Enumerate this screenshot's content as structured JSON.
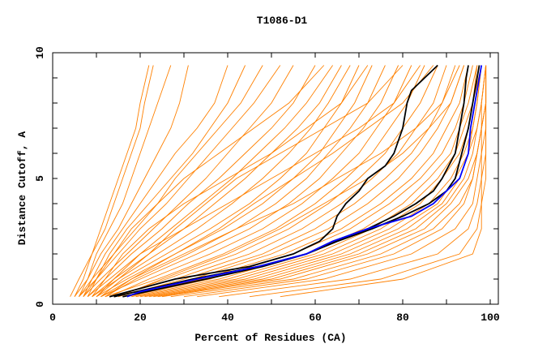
{
  "chart_data": {
    "type": "line",
    "title": "T1086-D1",
    "xlabel": "Percent of Residues (CA)",
    "ylabel": "Distance Cutoff, A",
    "xlim": [
      0,
      102
    ],
    "ylim": [
      0,
      10
    ],
    "x_ticks": [
      0,
      20,
      40,
      60,
      80,
      100
    ],
    "y_ticks": [
      0,
      5,
      10
    ],
    "grid": false,
    "legend": "none",
    "colors": {
      "models": "#ff8000",
      "highlight_black": "#000000",
      "highlight_blue": "#0000ff"
    },
    "y_levels": [
      0.3,
      1,
      2,
      3,
      4,
      5,
      6,
      7,
      8,
      9.5
    ],
    "model_curves_x": [
      [
        4,
        6,
        9,
        11,
        13,
        15,
        17,
        19,
        20,
        22
      ],
      [
        5,
        7,
        9,
        12,
        14,
        16,
        18,
        20,
        21,
        23
      ],
      [
        6,
        8,
        10,
        13,
        16,
        18,
        20,
        22,
        24,
        27
      ],
      [
        5,
        8,
        11,
        15,
        18,
        21,
        24,
        27,
        29,
        31
      ],
      [
        7,
        9,
        12,
        16,
        20,
        24,
        28,
        33,
        37,
        40
      ],
      [
        6,
        9,
        14,
        19,
        24,
        28,
        33,
        38,
        43,
        48
      ],
      [
        8,
        10,
        15,
        20,
        26,
        31,
        36,
        41,
        46,
        52
      ],
      [
        7,
        11,
        17,
        23,
        29,
        35,
        40,
        45,
        50,
        55
      ],
      [
        9,
        12,
        18,
        25,
        31,
        38,
        44,
        50,
        55,
        60
      ],
      [
        8,
        13,
        20,
        27,
        34,
        41,
        47,
        53,
        58,
        64
      ],
      [
        10,
        14,
        22,
        30,
        37,
        44,
        50,
        56,
        61,
        66
      ],
      [
        9,
        15,
        24,
        33,
        41,
        48,
        54,
        59,
        63,
        68
      ],
      [
        11,
        16,
        26,
        36,
        45,
        52,
        58,
        62,
        66,
        70
      ],
      [
        10,
        17,
        28,
        39,
        48,
        55,
        61,
        65,
        69,
        73
      ],
      [
        12,
        19,
        31,
        42,
        51,
        58,
        63,
        68,
        72,
        76
      ],
      [
        11,
        20,
        33,
        45,
        54,
        61,
        66,
        71,
        75,
        79
      ],
      [
        13,
        22,
        36,
        48,
        57,
        64,
        70,
        74,
        78,
        82
      ],
      [
        12,
        24,
        39,
        51,
        60,
        67,
        73,
        77,
        81,
        85
      ],
      [
        14,
        26,
        42,
        54,
        63,
        70,
        76,
        80,
        84,
        88
      ],
      [
        13,
        28,
        45,
        57,
        66,
        73,
        79,
        83,
        87,
        90
      ],
      [
        15,
        30,
        48,
        60,
        69,
        76,
        82,
        86,
        89,
        92
      ],
      [
        14,
        32,
        50,
        63,
        72,
        79,
        84,
        88,
        91,
        94
      ],
      [
        16,
        34,
        53,
        66,
        75,
        82,
        87,
        90,
        93,
        95
      ],
      [
        17,
        36,
        55,
        68,
        77,
        84,
        89,
        92,
        94,
        96
      ],
      [
        18,
        38,
        58,
        71,
        80,
        86,
        91,
        93,
        95,
        97
      ],
      [
        19,
        40,
        60,
        73,
        82,
        88,
        92,
        94,
        96,
        97
      ],
      [
        20,
        42,
        62,
        75,
        84,
        89,
        93,
        95,
        96,
        98
      ],
      [
        21,
        44,
        64,
        77,
        86,
        91,
        94,
        96,
        97,
        98
      ],
      [
        22,
        46,
        66,
        79,
        88,
        92,
        95,
        96,
        97,
        98
      ],
      [
        23,
        48,
        68,
        81,
        89,
        93,
        95,
        97,
        98,
        99
      ],
      [
        24,
        50,
        70,
        83,
        90,
        94,
        96,
        97,
        98,
        99
      ],
      [
        25,
        52,
        72,
        85,
        91,
        95,
        97,
        98,
        98,
        99
      ],
      [
        27,
        55,
        75,
        87,
        93,
        96,
        97,
        98,
        99,
        99
      ],
      [
        30,
        58,
        78,
        89,
        94,
        96,
        97,
        98,
        99,
        99
      ],
      [
        33,
        62,
        82,
        92,
        96,
        97,
        98,
        98,
        99,
        99
      ],
      [
        38,
        68,
        88,
        95,
        97,
        98,
        98,
        99,
        99,
        99
      ],
      [
        45,
        75,
        93,
        97,
        98,
        98,
        99,
        99,
        99,
        99
      ],
      [
        52,
        80,
        96,
        98,
        98,
        99,
        99,
        99,
        99,
        99
      ],
      [
        8,
        12,
        16,
        22,
        30,
        40,
        50,
        58,
        66,
        72
      ],
      [
        10,
        15,
        22,
        28,
        35,
        42,
        52,
        62,
        72,
        80
      ],
      [
        12,
        18,
        28,
        38,
        46,
        55,
        64,
        72,
        80,
        87
      ],
      [
        9,
        14,
        20,
        30,
        40,
        50,
        60,
        70,
        78,
        84
      ],
      [
        15,
        25,
        40,
        52,
        62,
        72,
        80,
        86,
        91,
        94
      ],
      [
        11,
        18,
        30,
        42,
        55,
        65,
        75,
        83,
        89,
        93
      ],
      [
        7,
        10,
        14,
        18,
        24,
        30,
        38,
        46,
        54,
        62
      ],
      [
        6,
        10,
        13,
        17,
        22,
        27,
        32,
        36,
        40,
        44
      ]
    ],
    "highlight_curves": [
      {
        "color": "#000000",
        "points": [
          [
            13,
            0.3
          ],
          [
            28,
            1
          ],
          [
            45,
            1.5
          ],
          [
            55,
            2
          ],
          [
            61,
            2.5
          ],
          [
            64,
            3
          ],
          [
            65,
            3.5
          ],
          [
            67,
            4
          ],
          [
            70,
            4.5
          ],
          [
            72,
            5
          ],
          [
            76,
            5.5
          ],
          [
            78,
            6
          ],
          [
            80,
            7
          ],
          [
            81,
            8
          ],
          [
            82,
            8.5
          ],
          [
            85,
            9
          ],
          [
            88,
            9.5
          ]
        ]
      },
      {
        "color": "#000000",
        "points": [
          [
            14,
            0.3
          ],
          [
            32,
            1
          ],
          [
            47,
            1.5
          ],
          [
            58,
            2
          ],
          [
            64,
            2.5
          ],
          [
            72,
            3
          ],
          [
            78,
            3.5
          ],
          [
            83,
            4
          ],
          [
            87,
            4.5
          ],
          [
            89,
            5
          ],
          [
            92,
            6
          ],
          [
            93,
            7
          ],
          [
            94,
            8
          ],
          [
            94.5,
            9
          ],
          [
            95,
            9.5
          ]
        ]
      },
      {
        "color": "#000000",
        "points": [
          [
            16,
            0.3
          ],
          [
            35,
            1
          ],
          [
            48,
            1.5
          ],
          [
            58,
            2
          ],
          [
            65,
            2.5
          ],
          [
            73,
            3
          ],
          [
            80,
            3.5
          ],
          [
            86,
            4
          ],
          [
            90,
            4.5
          ],
          [
            92,
            5
          ],
          [
            93.5,
            6
          ],
          [
            95,
            7
          ],
          [
            96,
            8
          ],
          [
            97,
            9
          ],
          [
            97.5,
            9.5
          ]
        ]
      },
      {
        "color": "#0000ff",
        "points": [
          [
            17,
            0.3
          ],
          [
            20,
            0.5
          ],
          [
            33,
            1
          ],
          [
            47,
            1.5
          ],
          [
            58,
            2
          ],
          [
            64,
            2.5
          ],
          [
            72,
            3
          ],
          [
            82,
            3.5
          ],
          [
            87,
            4
          ],
          [
            90,
            4.5
          ],
          [
            93,
            5
          ],
          [
            95,
            6
          ],
          [
            95.5,
            7
          ],
          [
            96.5,
            8
          ],
          [
            97.5,
            9
          ],
          [
            98,
            9.5
          ]
        ]
      }
    ]
  }
}
